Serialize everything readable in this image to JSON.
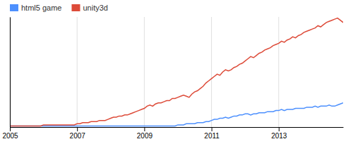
{
  "chart_data": {
    "type": "line",
    "categories": [
      "2005",
      null,
      null,
      null,
      null,
      null,
      null,
      null,
      null,
      null,
      null,
      null,
      null,
      null,
      null,
      null,
      null,
      null,
      null,
      null,
      null,
      null,
      null,
      null,
      "2007",
      null,
      null,
      null,
      null,
      null,
      null,
      null,
      null,
      null,
      null,
      null,
      null,
      null,
      null,
      null,
      null,
      null,
      null,
      null,
      null,
      null,
      null,
      null,
      "2009",
      null,
      null,
      null,
      null,
      null,
      null,
      null,
      null,
      null,
      null,
      null,
      null,
      null,
      null,
      null,
      null,
      null,
      null,
      null,
      null,
      null,
      null,
      null,
      "2011",
      null,
      null,
      null,
      null,
      null,
      null,
      null,
      null,
      null,
      null,
      null,
      null,
      null,
      null,
      null,
      null,
      null,
      null,
      null,
      null,
      null,
      null,
      null,
      "2013",
      null,
      null,
      null,
      null,
      null,
      null,
      null,
      null,
      null,
      null,
      null,
      null,
      null,
      null,
      null,
      null,
      null,
      null,
      null,
      null,
      null,
      null,
      null
    ],
    "series": [
      {
        "name": "html5 game",
        "color": "#4d90fe",
        "values": [
          1,
          1,
          1,
          1,
          1,
          1,
          1,
          1,
          1,
          1,
          1,
          1,
          1,
          1,
          1,
          1,
          1,
          1,
          1,
          1,
          1,
          1,
          1,
          1,
          1,
          1,
          1,
          1,
          1,
          1,
          1,
          1,
          1,
          1,
          1,
          1,
          1,
          1,
          1,
          1,
          1,
          1,
          1,
          1,
          1,
          1,
          1,
          1,
          1,
          1,
          1,
          1,
          1,
          1,
          1,
          1,
          1,
          1,
          1,
          1,
          2,
          2,
          2,
          3,
          3,
          3,
          3,
          4,
          4,
          4,
          5,
          5,
          6,
          7,
          7,
          8,
          8,
          9,
          8,
          9,
          10,
          10,
          11,
          11,
          12,
          12,
          11,
          12,
          12,
          13,
          13,
          13,
          14,
          14,
          14,
          15,
          15,
          16,
          15,
          16,
          16,
          16,
          17,
          17,
          17,
          17,
          18,
          18,
          18,
          19,
          18,
          19,
          19,
          19,
          20,
          19,
          19,
          20,
          21,
          22
        ]
      },
      {
        "name": "unity3d",
        "color": "#dd4b39",
        "values": [
          1,
          1,
          1,
          1,
          1,
          1,
          1,
          1,
          1,
          1,
          1,
          1,
          2,
          2,
          2,
          2,
          2,
          2,
          2,
          2,
          2,
          2,
          2,
          2,
          3,
          3,
          4,
          4,
          4,
          5,
          5,
          5,
          6,
          6,
          6,
          7,
          8,
          9,
          9,
          10,
          10,
          11,
          11,
          12,
          13,
          14,
          15,
          16,
          17,
          19,
          20,
          19,
          21,
          22,
          22,
          23,
          24,
          24,
          26,
          26,
          27,
          28,
          29,
          28,
          27,
          30,
          32,
          33,
          35,
          37,
          40,
          42,
          44,
          46,
          48,
          47,
          50,
          52,
          51,
          52,
          54,
          55,
          57,
          58,
          60,
          62,
          64,
          63,
          65,
          67,
          68,
          70,
          71,
          72,
          74,
          75,
          76,
          78,
          77,
          79,
          80,
          82,
          81,
          83,
          84,
          86,
          87,
          88,
          89,
          90,
          92,
          91,
          93,
          95,
          96,
          97,
          98,
          99,
          97,
          95
        ]
      }
    ],
    "ylim": [
      0,
      100
    ],
    "grid": true,
    "legend": "upper left",
    "tick_labels": "x"
  }
}
